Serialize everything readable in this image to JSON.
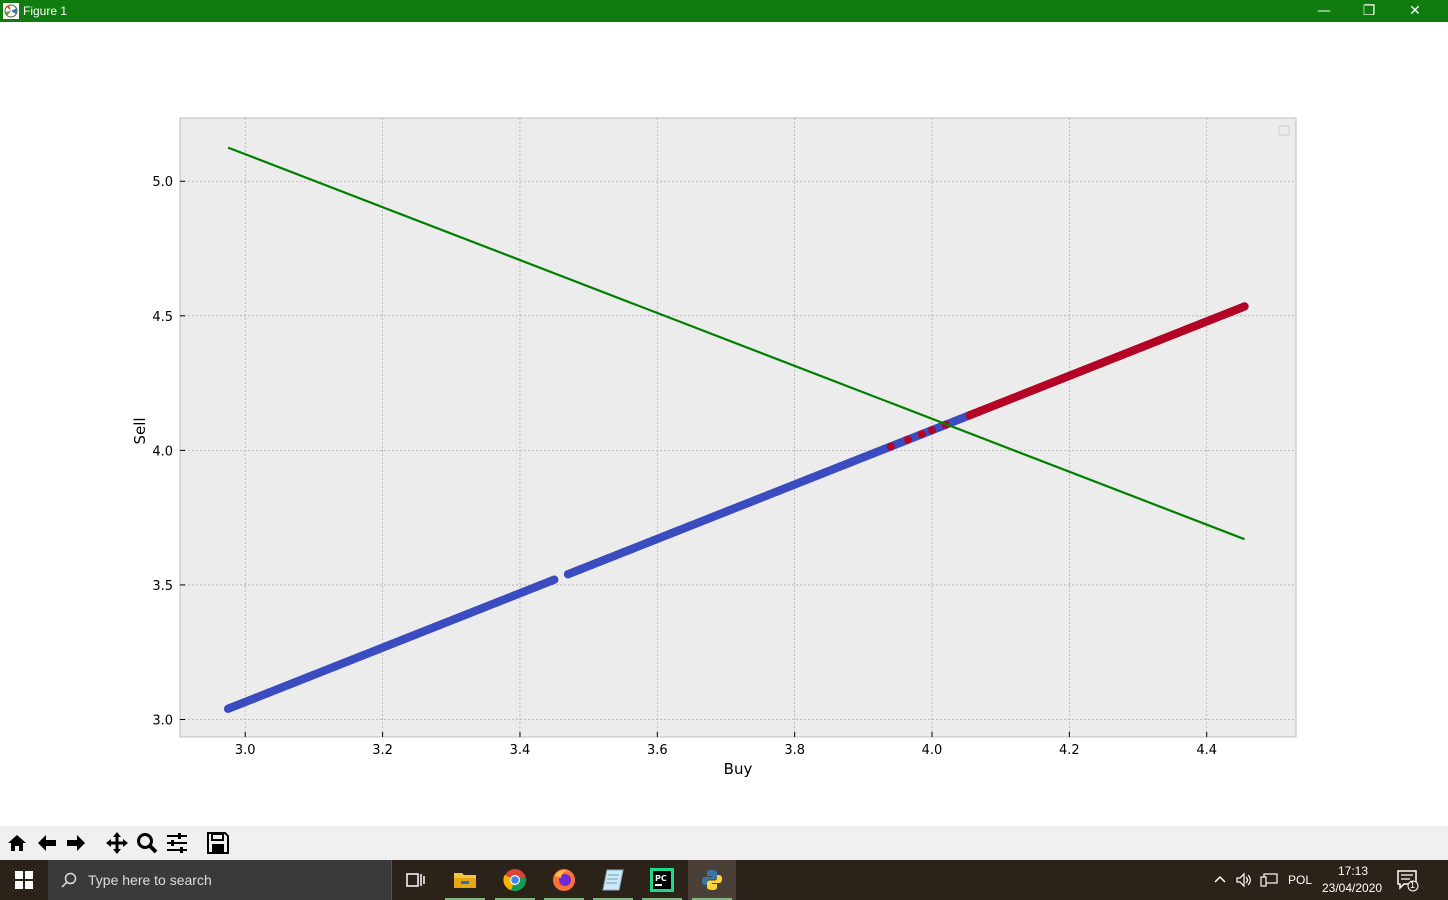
{
  "window": {
    "title": "Figure 1",
    "minimize_glyph": "—",
    "restore_glyph": "❐",
    "close_glyph": "✕"
  },
  "toolbar": {
    "icons": [
      "home-icon",
      "back-icon",
      "forward-icon",
      "pan-icon",
      "zoom-icon",
      "configure-subplots-icon",
      "save-icon"
    ]
  },
  "taskbar": {
    "search_placeholder": "Type here to search",
    "language": "POL",
    "time": "17:13",
    "date": "23/04/2020",
    "notification_count": "1",
    "apps": [
      "task-view-icon",
      "file-explorer-icon",
      "chrome-icon",
      "firefox-icon",
      "notepad-icon",
      "pycharm-icon",
      "python-icon"
    ]
  },
  "chart_data": {
    "type": "scatter",
    "xlabel": "Buy",
    "ylabel": "Sell",
    "xlim": [
      2.905,
      4.53
    ],
    "ylim": [
      2.935,
      5.235
    ],
    "x_ticks": [
      "3.0",
      "3.2",
      "3.4",
      "3.6",
      "3.8",
      "4.0",
      "4.2",
      "4.4"
    ],
    "y_ticks": [
      "3.0",
      "3.5",
      "4.0",
      "4.5",
      "5.0"
    ],
    "x_tick_values": [
      3.0,
      3.2,
      3.4,
      3.6,
      3.8,
      4.0,
      4.2,
      4.4
    ],
    "y_tick_values": [
      3.0,
      3.5,
      4.0,
      4.5,
      5.0
    ],
    "grid": true,
    "legend": "top-right, empty",
    "colors": {
      "blue": "#3b4cc0",
      "red": "#b40426",
      "line": "#008000",
      "axes_bg": "#ececec"
    },
    "series": [
      {
        "kind": "points",
        "color": "blue",
        "x_range": [
          2.975,
          4.055
        ],
        "relation": "sell = 1.01*buy + 0.035",
        "gaps": [
          [
            3.452,
            3.468
          ]
        ]
      },
      {
        "kind": "points",
        "color": "red",
        "x_range": [
          4.055,
          4.455
        ],
        "relation": "sell = 1.01*buy + 0.035",
        "scattered_red_x": [
          3.94,
          3.965,
          3.985,
          4.0,
          4.02
        ]
      },
      {
        "kind": "line",
        "color": "line",
        "x": [
          2.975,
          4.455
        ],
        "y": [
          5.125,
          3.67
        ]
      }
    ]
  }
}
